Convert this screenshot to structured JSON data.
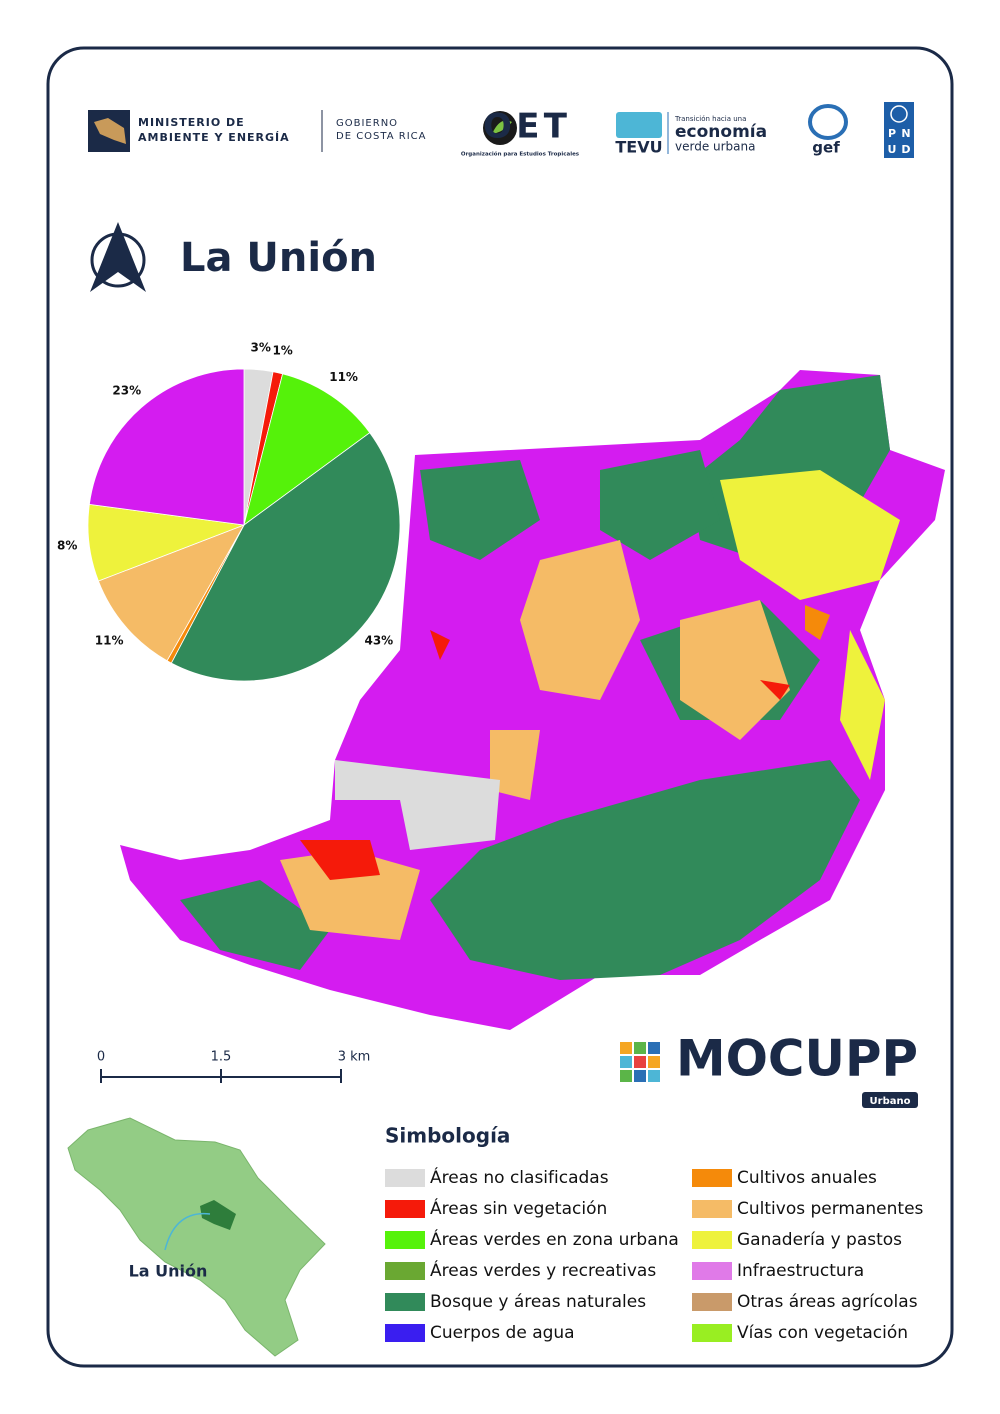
{
  "header": {
    "ministry_line1": "MINISTERIO DE",
    "ministry_line2": "AMBIENTE Y ENERGÍA",
    "gov_line1": "GOBIERNO",
    "gov_line2": "DE COSTA RICA",
    "ots_logo": "OET",
    "ots_name": "Organización para Estudios Tropicales",
    "tevu_logo": "TEVU",
    "tevu_line1": "Transición hacia una",
    "tevu_line2": "economía",
    "tevu_line3": "verde urbana",
    "gef_logo": "gef",
    "pnud_letters": [
      "P",
      "N",
      "U",
      "D"
    ]
  },
  "title": "La Unión",
  "chart_data": {
    "type": "pie",
    "values": [
      3,
      1,
      11,
      43,
      0.5,
      11,
      8,
      23
    ],
    "value_labels": [
      "3%",
      "1%",
      "11%",
      "43%",
      null,
      "11%",
      "8%",
      "23%"
    ],
    "colors": [
      "#dcdcdc",
      "#f51a0a",
      "#55f20a",
      "#318a5a",
      "#f58a0a",
      "#f5bb66",
      "#eef23c",
      "#d41cf0"
    ]
  },
  "scale": {
    "labels": [
      "0",
      "1.5",
      "3 km"
    ]
  },
  "brand": {
    "name": "MOCUPP",
    "tag": "Urbano"
  },
  "legend": {
    "title": "Simbología",
    "items": [
      {
        "name": "Áreas no clasificadas",
        "color": "#dcdcdc"
      },
      {
        "name": "Áreas sin vegetación",
        "color": "#f51a0a"
      },
      {
        "name": "Áreas verdes en zona urbana",
        "color": "#55f20a"
      },
      {
        "name": "Áreas verdes y recreativas",
        "color": "#6aa832"
      },
      {
        "name": "Bosque y áreas naturales",
        "color": "#318a5a"
      },
      {
        "name": "Cuerpos de agua",
        "color": "#3a1ef0"
      },
      {
        "name": "Cultivos anuales",
        "color": "#f58a0a"
      },
      {
        "name": "Cultivos permanentes",
        "color": "#f5bb66"
      },
      {
        "name": "Ganadería y pastos",
        "color": "#eef23c"
      },
      {
        "name": "Infraestructura",
        "color": "#e07ae8"
      },
      {
        "name": "Otras áreas agrícolas",
        "color": "#c99a6a"
      },
      {
        "name": "Vías con vegetación",
        "color": "#99ee22"
      }
    ]
  },
  "inset": {
    "label": "La Unión"
  }
}
